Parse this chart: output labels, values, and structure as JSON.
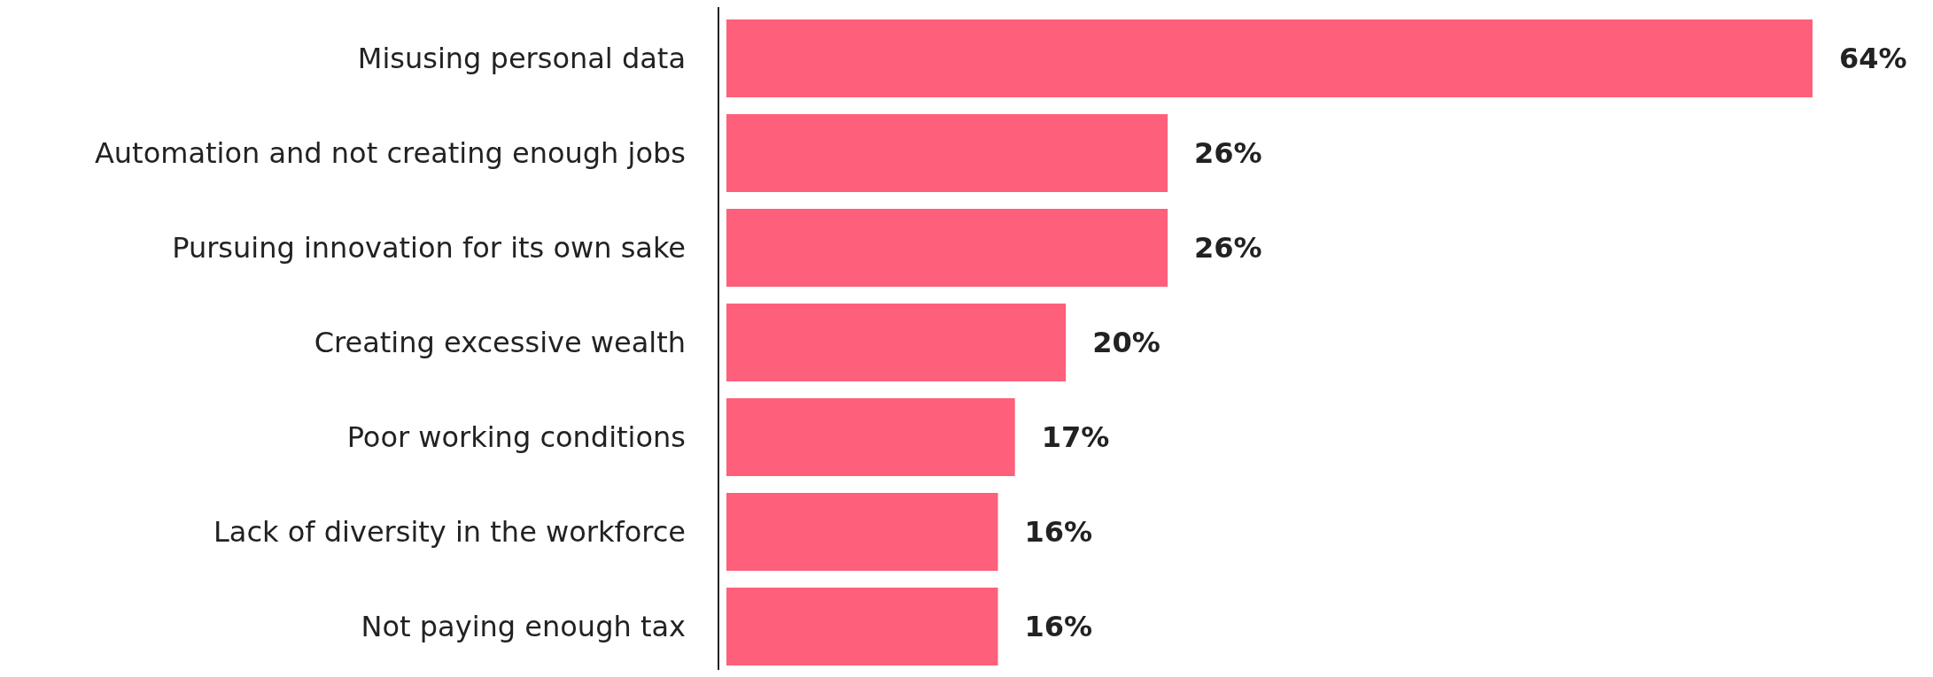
{
  "chart_data": {
    "type": "bar",
    "orientation": "horizontal",
    "categories": [
      "Misusing personal data",
      "Automation and not creating enough jobs",
      "Pursuing innovation for its own sake",
      "Creating excessive wealth",
      "Poor working conditions",
      "Lack of diversity in the workforce",
      "Not paying enough tax"
    ],
    "series": [
      {
        "color": "#fe5f7a",
        "values": [
          64,
          26,
          26,
          20,
          17,
          16,
          16
        ],
        "value_labels": [
          "64%",
          "26%",
          "26%",
          "20%",
          "17%",
          "16%",
          "16%"
        ]
      }
    ]
  }
}
